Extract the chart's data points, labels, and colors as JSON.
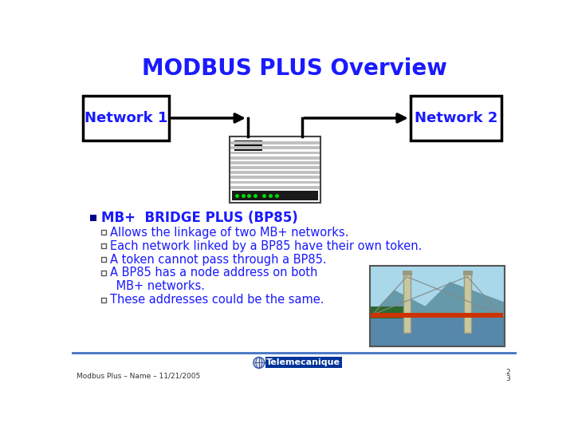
{
  "title": "MODBUS PLUS Overview",
  "title_color": "#1a1aff",
  "title_fontsize": 20,
  "bg_color": "#ffffff",
  "network1_label": "Network 1",
  "network2_label": "Network 2",
  "network_color": "#1a1aff",
  "network_fontsize": 13,
  "bullet_main": "MB+  BRIDGE PLUS (BP85)",
  "bullet_color": "#1a1aff",
  "bullet_fontsize": 12,
  "sub_bullets": [
    "Allows the linkage of two MB+ networks.",
    "Each network linked by a BP85 have their own token.",
    "A token cannot pass through a BP85.",
    "A BP85 has a node address on both",
    " MB+ networks.",
    "These addresses could be the same."
  ],
  "sub_bullet_fontsize": 10.5,
  "footer_left": "Modbus Plus – Name – 11/21/2005",
  "footer_color": "#333333",
  "footer_fontsize": 6.5,
  "telemecanique_text": "Telemecanique",
  "line_color": "#4472c4"
}
